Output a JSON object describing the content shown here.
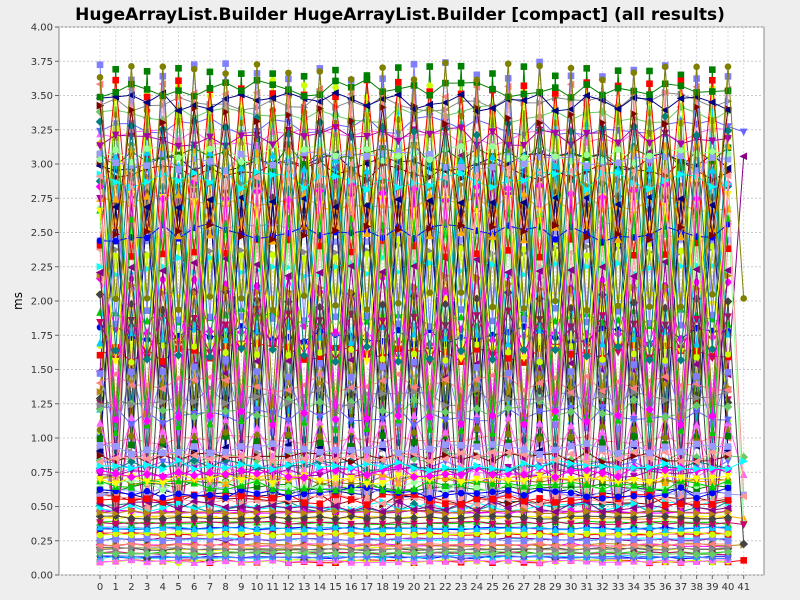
{
  "chart_data": {
    "type": "line",
    "title": "HugeArrayList.Builder HugeArrayList.Builder [compact] (all results)",
    "xlabel": "",
    "ylabel": "ms",
    "x_categories": [
      "0",
      "1",
      "2",
      "3",
      "4",
      "5",
      "6",
      "7",
      "8",
      "9",
      "10",
      "11",
      "12",
      "13",
      "14",
      "15",
      "16",
      "17",
      "18",
      "19",
      "20",
      "21",
      "22",
      "23",
      "24",
      "25",
      "26",
      "27",
      "28",
      "29",
      "30",
      "31",
      "32",
      "33",
      "34",
      "35",
      "36",
      "37",
      "38",
      "39",
      "40",
      "41"
    ],
    "ylim": [
      0,
      4.0
    ],
    "y_ticks": [
      "0.00",
      "0.25",
      "0.50",
      "0.75",
      "1.00",
      "1.25",
      "1.50",
      "1.75",
      "2.00",
      "2.25",
      "2.50",
      "2.75",
      "3.00",
      "3.25",
      "3.50",
      "3.75",
      "4.00"
    ],
    "grid": true,
    "legend": "none",
    "series_count": 120,
    "band_levels": [
      0.1,
      0.13,
      0.16,
      0.19,
      0.22,
      0.26,
      0.3,
      0.34,
      0.38,
      0.42,
      0.46,
      0.5,
      0.55,
      0.6,
      0.65,
      0.7,
      0.75,
      0.8,
      0.86,
      0.92,
      0.98,
      1.04,
      1.1,
      1.16,
      1.22,
      1.3,
      1.4,
      1.5,
      1.62,
      1.75,
      1.88,
      2.0,
      2.12,
      2.25,
      2.38,
      2.5,
      2.62,
      2.72,
      2.8,
      2.88,
      2.95,
      3.02,
      3.08,
      3.14,
      3.2,
      3.28,
      3.36,
      3.45,
      3.55,
      3.68
    ],
    "palette": [
      "#ff0000",
      "#0000ff",
      "#00cc00",
      "#ffff00",
      "#ff00ff",
      "#00ffff",
      "#ff9999",
      "#9999ff",
      "#99ff99",
      "#ffaa00",
      "#aa00aa",
      "#008080",
      "#800000",
      "#000080",
      "#008000",
      "#808000",
      "#ff66ff",
      "#6666ff",
      "#66cc66",
      "#888888",
      "#ff8080",
      "#8080ff",
      "#ccff00",
      "#00ccff",
      "#cc0066",
      "#444444",
      "#b8860b",
      "#8b008b"
    ],
    "marker_shapes": [
      "square",
      "circle",
      "triangle-up",
      "triangle-down",
      "diamond",
      "triangle-right",
      "triangle-left"
    ]
  }
}
